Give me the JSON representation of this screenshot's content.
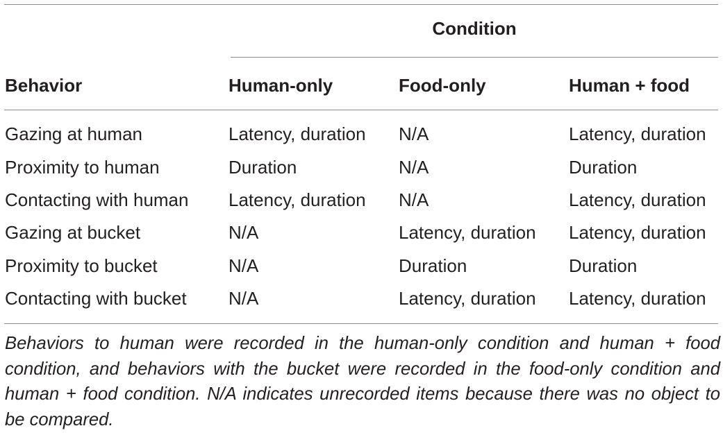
{
  "table": {
    "group_header": "Condition",
    "headers": [
      "Behavior",
      "Human-only",
      "Food-only",
      "Human + food"
    ],
    "rows": [
      [
        "Gazing at human",
        "Latency, duration",
        "N/A",
        "Latency, duration"
      ],
      [
        "Proximity to human",
        "Duration",
        "N/A",
        "Duration"
      ],
      [
        "Contacting with human",
        "Latency, duration",
        "N/A",
        "Latency, duration"
      ],
      [
        "Gazing at bucket",
        "N/A",
        "Latency, duration",
        "Latency, duration"
      ],
      [
        "Proximity to bucket",
        "N/A",
        "Duration",
        "Duration"
      ],
      [
        "Contacting with bucket",
        "N/A",
        "Latency, duration",
        "Latency, duration"
      ]
    ],
    "footnote": "Behaviors to human were recorded in the human-only condition and human + food condition, and behaviors with the bucket were recorded in the food-only condition and human + food condition. N/A indicates unrecorded items because there was no object to be compared."
  }
}
